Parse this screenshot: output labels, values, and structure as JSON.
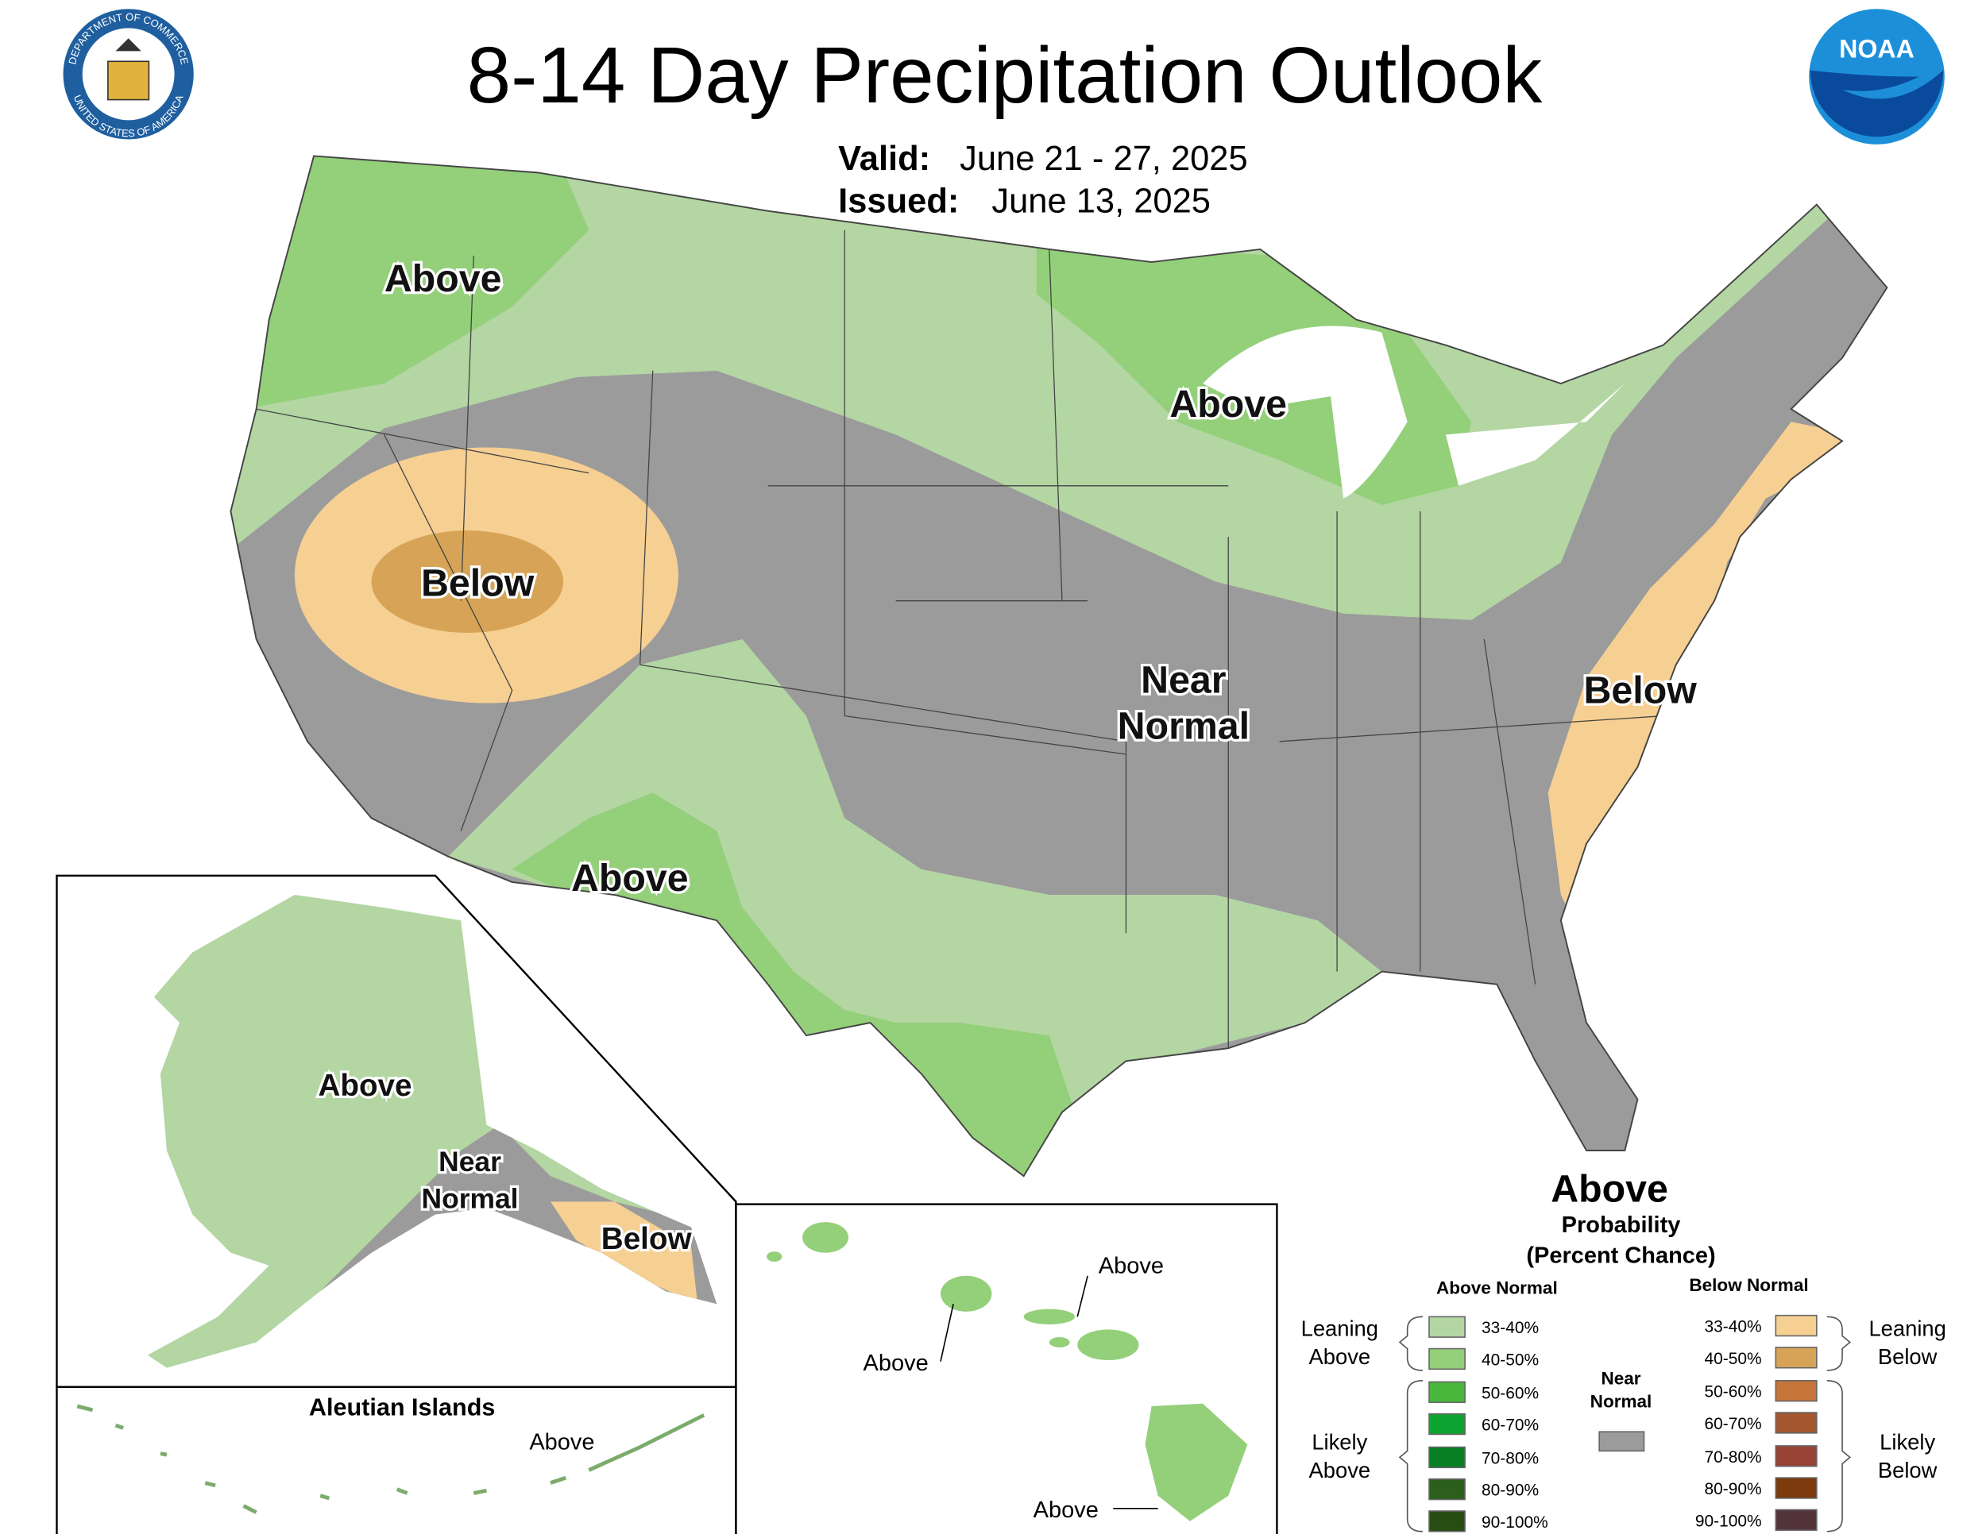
{
  "header": {
    "title": "8-14 Day Precipitation Outlook",
    "valid_label": "Valid:",
    "valid": "June 21 - 27, 2025",
    "issued_label": "Issued:",
    "issued": "June 13, 2025"
  },
  "logos": {
    "commerce_top": "DEPARTMENT OF COMMERCE",
    "commerce_bottom": "UNITED STATES OF AMERICA",
    "noaa": "NOAA"
  },
  "conus_labels": {
    "northwest": "Above",
    "great_lakes": "Above",
    "great_basin": "Below",
    "central": [
      "Near",
      "Normal"
    ],
    "southwest": "Above",
    "east_coast": "Below"
  },
  "alaska_labels": {
    "mainland": "Above",
    "gulf": [
      "Near",
      "Normal"
    ],
    "panhandle": "Below"
  },
  "aleutian": {
    "title": "Aleutian Islands",
    "label": "Above"
  },
  "hawaii_labels": {
    "oahu": "Above",
    "maui": "Above",
    "big_island": "Above"
  },
  "legend": {
    "title": "Above",
    "subtitle": [
      "Probability",
      "(Percent Chance)"
    ],
    "above_header": "Above Normal",
    "below_header": "Below Normal",
    "above_bins": [
      {
        "range": "33-40%",
        "color": "#b3d6a3"
      },
      {
        "range": "40-50%",
        "color": "#94cf7a"
      },
      {
        "range": "50-60%",
        "color": "#48b73c"
      },
      {
        "range": "60-70%",
        "color": "#0ea431"
      },
      {
        "range": "70-80%",
        "color": "#087f23"
      },
      {
        "range": "80-90%",
        "color": "#2b5f1b"
      },
      {
        "range": "90-100%",
        "color": "#284d14"
      }
    ],
    "below_bins": [
      {
        "range": "33-40%",
        "color": "#f6cf92"
      },
      {
        "range": "40-50%",
        "color": "#d7a457"
      },
      {
        "range": "50-60%",
        "color": "#c5743a"
      },
      {
        "range": "60-70%",
        "color": "#a5582f"
      },
      {
        "range": "70-80%",
        "color": "#984236"
      },
      {
        "range": "80-90%",
        "color": "#7d3a0c"
      },
      {
        "range": "90-100%",
        "color": "#53333a"
      }
    ],
    "near_normal": {
      "label": [
        "Near",
        "Normal"
      ],
      "color": "#9b9b9b"
    },
    "leaning_above": [
      "Leaning",
      "Above"
    ],
    "likely_above": [
      "Likely",
      "Above"
    ],
    "leaning_below": [
      "Leaning",
      "Below"
    ],
    "likely_below": [
      "Likely",
      "Below"
    ]
  }
}
